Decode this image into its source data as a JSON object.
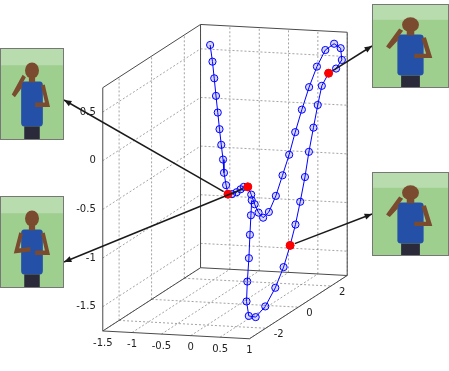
{
  "chart_data": {
    "type": "line",
    "grid": true,
    "xlim": [
      -1.5,
      1
    ],
    "xticks": [
      -1.5,
      -1,
      -0.5,
      0,
      0.5,
      1
    ],
    "ylim": [
      -3,
      3
    ],
    "yticks": [
      -2,
      0,
      2
    ],
    "zlim": [
      -1.75,
      0.75
    ],
    "zticks": [
      -1.5,
      -1,
      -0.5,
      0,
      0.5
    ],
    "series": [
      {
        "color": "#0000ff",
        "marker": "o",
        "line_style": "solid",
        "x": [
          -0.92,
          -0.88,
          -0.85,
          -0.82,
          -0.79,
          -0.76,
          -0.73,
          -0.7,
          -0.67,
          -0.62,
          -0.56,
          -0.45,
          -0.33,
          -0.22,
          -0.11,
          0.0,
          0.1,
          0.2,
          0.3,
          0.4,
          0.47,
          0.52,
          0.55,
          0.58,
          0.6,
          0.63,
          0.67,
          0.72,
          0.78,
          0.86,
          0.93,
          0.95,
          0.88,
          0.78,
          0.72,
          0.72,
          0.73,
          0.75,
          0.78,
          0.81,
          0.84,
          0.86,
          0.86,
          0.83,
          0.77,
          0.69,
          0.6,
          0.52,
          0.45,
          0.38,
          0.3,
          0.22,
          0.15
        ],
        "y": [
          1.5,
          1.5,
          1.5,
          1.5,
          1.5,
          1.5,
          1.5,
          1.5,
          1.45,
          1.4,
          1.3,
          1.15,
          1.0,
          0.85,
          0.65,
          0.5,
          0.35,
          0.2,
          0.08,
          0.0,
          0.1,
          0.35,
          0.65,
          0.95,
          1.25,
          1.55,
          1.85,
          2.15,
          2.45,
          2.7,
          2.85,
          2.85,
          2.75,
          2.65,
          2.45,
          2.2,
          1.9,
          1.55,
          1.2,
          0.8,
          0.4,
          0.0,
          -0.4,
          -0.8,
          -1.2,
          -1.5,
          -1.6,
          -1.45,
          -1.15,
          -0.8,
          -0.45,
          -0.1,
          0.2
        ],
        "z": [
          0.72,
          0.55,
          0.38,
          0.2,
          0.03,
          -0.14,
          -0.3,
          -0.45,
          -0.58,
          -0.7,
          -0.78,
          -0.76,
          -0.72,
          -0.67,
          -0.62,
          -0.6,
          -0.66,
          -0.74,
          -0.81,
          -0.85,
          -0.8,
          -0.66,
          -0.48,
          -0.3,
          -0.1,
          0.1,
          0.3,
          0.48,
          0.62,
          0.66,
          0.6,
          0.48,
          0.4,
          0.36,
          0.25,
          0.08,
          -0.12,
          -0.33,
          -0.55,
          -0.76,
          -0.95,
          -1.12,
          -1.3,
          -1.47,
          -1.62,
          -1.7,
          -1.68,
          -1.55,
          -1.38,
          -1.18,
          -0.98,
          -0.82,
          -0.7
        ]
      },
      {
        "color": "#ff0000",
        "marker": "o",
        "line_style": "none",
        "x": [
          -0.56,
          0.0,
          0.78,
          0.86
        ],
        "y": [
          1.3,
          0.5,
          2.65,
          0.0
        ],
        "z": [
          -0.78,
          -0.6,
          0.36,
          -1.12
        ]
      }
    ]
  }
}
